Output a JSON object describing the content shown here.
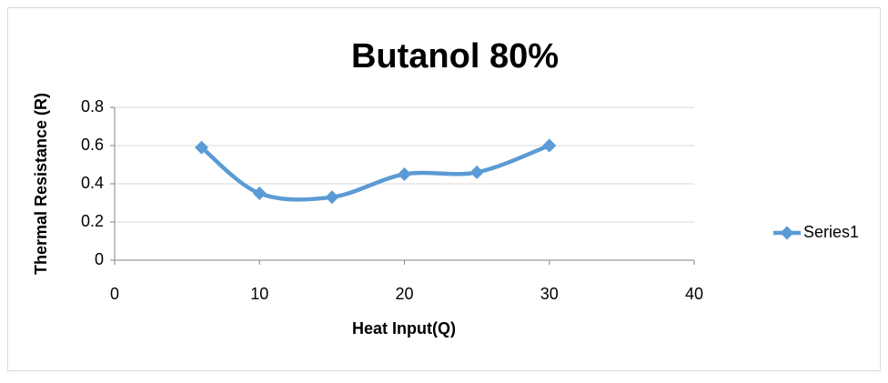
{
  "chart_data": {
    "type": "scatter",
    "smooth": true,
    "title": "Butanol 80%",
    "xlabel": "Heat Input(Q)",
    "ylabel": "Thermal Resistance (R)",
    "x": [
      6,
      10,
      15,
      20,
      25,
      30
    ],
    "series": [
      {
        "name": "Series1",
        "color": "#5b9bd5",
        "values": [
          0.59,
          0.35,
          0.33,
          0.45,
          0.46,
          0.6
        ]
      }
    ],
    "xlim": [
      0,
      40
    ],
    "xticks": [
      0,
      10,
      20,
      30,
      40
    ],
    "ylim": [
      0,
      0.8
    ],
    "yticks": [
      0,
      0.2,
      0.4,
      0.6,
      0.8
    ],
    "grid": true,
    "legend": "right"
  }
}
